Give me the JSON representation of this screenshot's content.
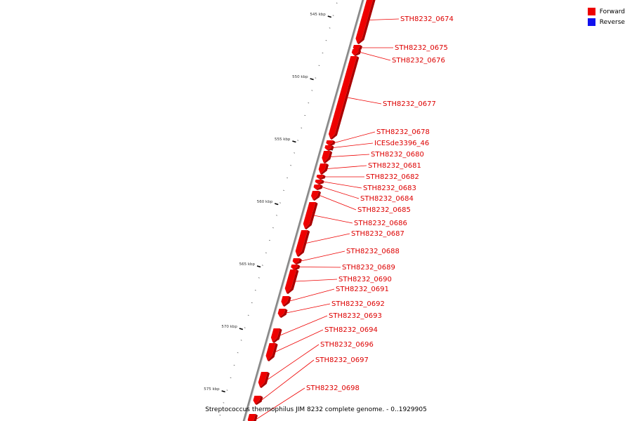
{
  "legend": {
    "items": [
      {
        "label": "Forward",
        "color": "#ee0000"
      },
      {
        "label": "Reverse",
        "color": "#1111ee"
      }
    ]
  },
  "caption": "Streptococcus thermophilus JIM 8232 complete genome. - 0..1929905",
  "colors": {
    "forward": "#ee0000",
    "reverse": "#1111ee",
    "backbone": "#888888"
  },
  "scale": {
    "unit": "kbp",
    "major_labels": [
      "545 kbp",
      "550 kbp",
      "555 kbp",
      "560 kbp",
      "565 kbp",
      "570 kbp",
      "575 kbp"
    ]
  },
  "genes": [
    {
      "id": "STH8232_0674",
      "strand": "forward"
    },
    {
      "id": "STH8232_0675",
      "strand": "forward"
    },
    {
      "id": "STH8232_0676",
      "strand": "forward"
    },
    {
      "id": "STH8232_0677",
      "strand": "forward"
    },
    {
      "id": "STH8232_0678",
      "strand": "forward"
    },
    {
      "id": "ICESde3396_46",
      "strand": "forward"
    },
    {
      "id": "STH8232_0680",
      "strand": "forward"
    },
    {
      "id": "STH8232_0681",
      "strand": "forward"
    },
    {
      "id": "STH8232_0682",
      "strand": "forward"
    },
    {
      "id": "STH8232_0683",
      "strand": "forward"
    },
    {
      "id": "STH8232_0684",
      "strand": "forward"
    },
    {
      "id": "STH8232_0685",
      "strand": "forward"
    },
    {
      "id": "STH8232_0686",
      "strand": "forward"
    },
    {
      "id": "STH8232_0687",
      "strand": "forward"
    },
    {
      "id": "STH8232_0688",
      "strand": "forward"
    },
    {
      "id": "STH8232_0689",
      "strand": "forward"
    },
    {
      "id": "STH8232_0690",
      "strand": "forward"
    },
    {
      "id": "STH8232_0691",
      "strand": "forward"
    },
    {
      "id": "STH8232_0692",
      "strand": "forward"
    },
    {
      "id": "STH8232_0693",
      "strand": "forward"
    },
    {
      "id": "STH8232_0694",
      "strand": "forward"
    },
    {
      "id": "STH8232_0696",
      "strand": "forward"
    },
    {
      "id": "STH8232_0697",
      "strand": "forward"
    },
    {
      "id": "STH8232_0698",
      "strand": "forward"
    }
  ]
}
